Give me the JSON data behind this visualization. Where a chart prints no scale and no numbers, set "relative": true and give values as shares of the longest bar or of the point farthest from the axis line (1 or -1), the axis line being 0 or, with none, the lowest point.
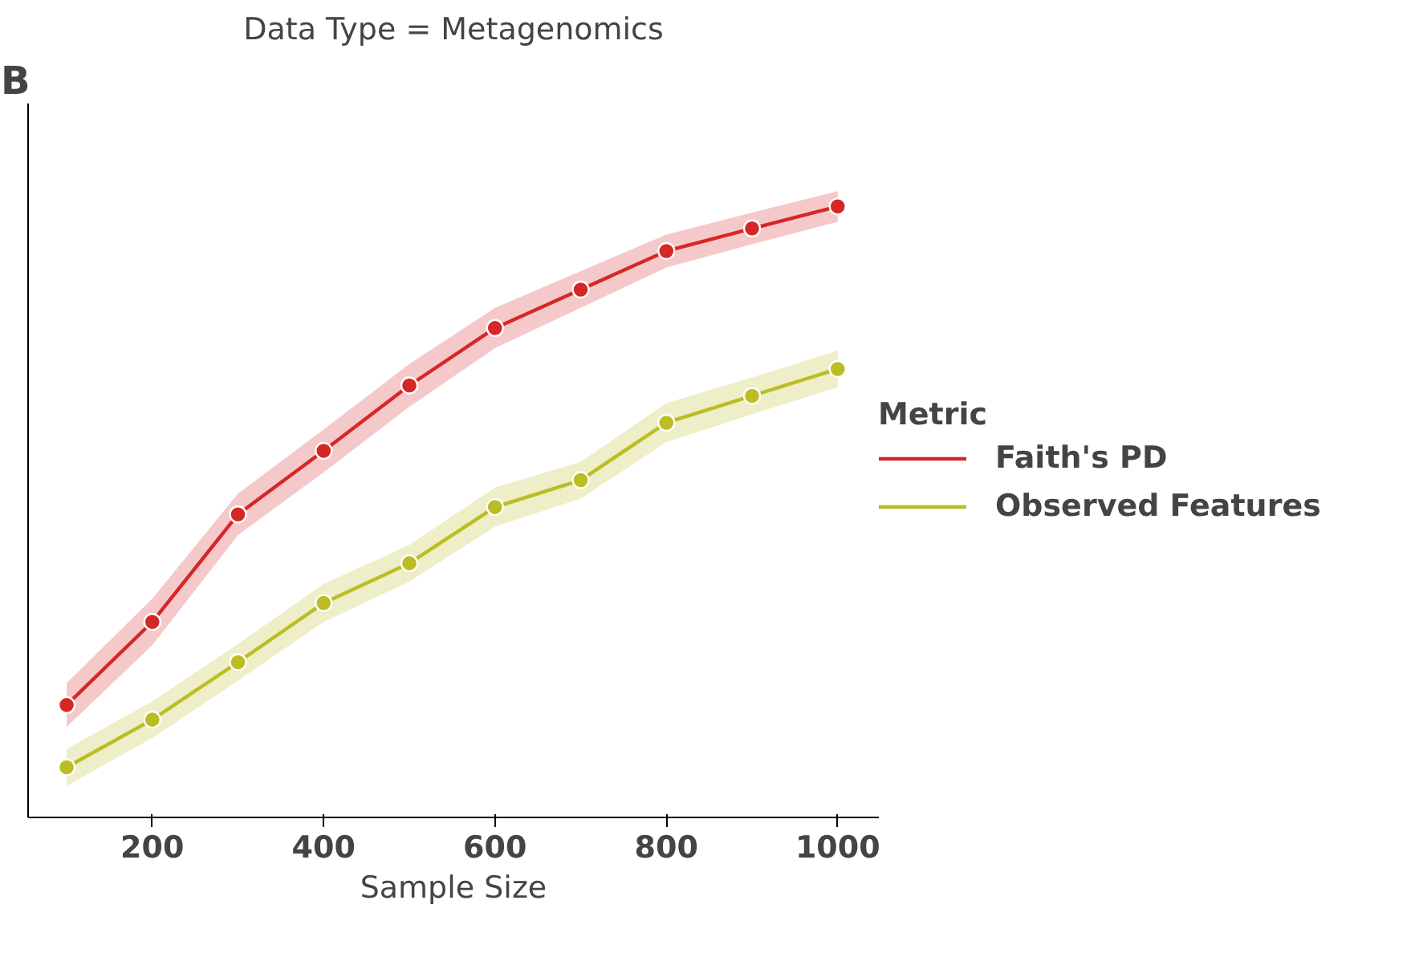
{
  "chart_data": {
    "type": "line",
    "title": "Data Type = Metagenomics",
    "xlabel": "Sample Size",
    "legend_title": "Metric",
    "annotations": [
      "B"
    ],
    "x": [
      100,
      200,
      300,
      400,
      500,
      600,
      700,
      800,
      900,
      1000
    ],
    "xlim": [
      55,
      1048
    ],
    "xticks": [
      200,
      400,
      600,
      800,
      1000
    ],
    "relative": true,
    "tick_labels": "x",
    "grid": false,
    "legend": "right",
    "marker": "circle",
    "line_style": "solid",
    "series": [
      {
        "name": "Faith's PD",
        "color": "#d62728",
        "values": [
          0.184,
          0.32,
          0.496,
          0.6,
          0.707,
          0.801,
          0.864,
          0.927,
          0.964,
          1.0
        ],
        "lower": [
          0.148,
          0.282,
          0.462,
          0.565,
          0.672,
          0.768,
          0.834,
          0.9,
          0.938,
          0.975
        ],
        "upper": [
          0.22,
          0.358,
          0.53,
          0.635,
          0.742,
          0.834,
          0.894,
          0.954,
          0.99,
          1.025
        ]
      },
      {
        "name": "Observed Features",
        "color": "#bcbd22",
        "values": [
          0.082,
          0.16,
          0.254,
          0.351,
          0.416,
          0.508,
          0.552,
          0.646,
          0.69,
          0.734
        ],
        "lower": [
          0.052,
          0.13,
          0.224,
          0.32,
          0.386,
          0.476,
          0.522,
          0.614,
          0.66,
          0.704
        ],
        "upper": [
          0.112,
          0.19,
          0.284,
          0.382,
          0.446,
          0.54,
          0.582,
          0.678,
          0.72,
          0.764
        ]
      }
    ]
  }
}
